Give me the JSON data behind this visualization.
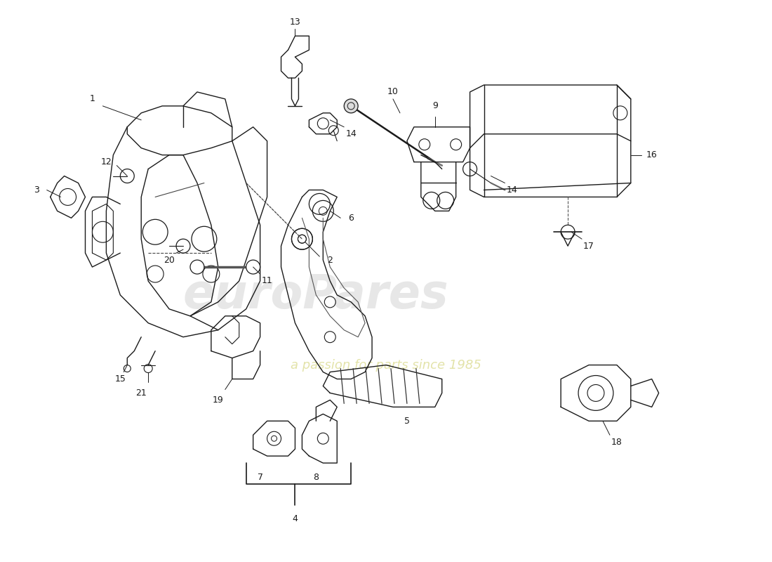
{
  "background_color": "#ffffff",
  "line_color": "#1a1a1a",
  "watermark_text1": "euroPares",
  "watermark_text2": "a passion for parts since 1985",
  "watermark_color1": "#d0d0d0",
  "watermark_color2": "#e0e0a0",
  "fig_width": 11.0,
  "fig_height": 8.0,
  "dpi": 100
}
